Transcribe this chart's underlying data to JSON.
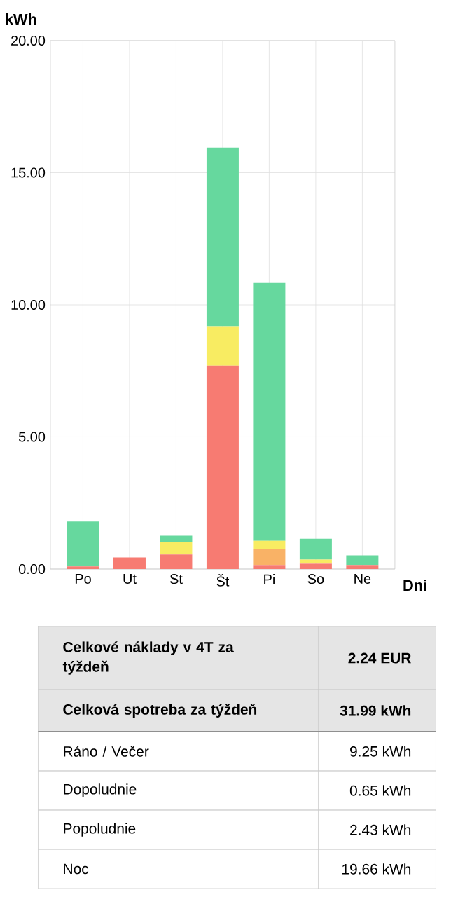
{
  "chart_data": {
    "type": "bar",
    "stacked": true,
    "xlabel": "Dni",
    "ylabel": "kWh",
    "categories": [
      "Po",
      "Ut",
      "St",
      "Št",
      "Pi",
      "So",
      "Ne"
    ],
    "series": [
      {
        "color": "#f77b72",
        "values": [
          0.1,
          0.44,
          0.55,
          7.7,
          0.15,
          0.2,
          0.15
        ]
      },
      {
        "color": "#f9b266",
        "values": [
          0,
          0,
          0,
          0,
          0.6,
          0.03,
          null
        ]
      },
      {
        "color": "#f8ec62",
        "values": [
          0,
          0,
          0.47,
          1.49,
          0.32,
          0.13,
          0
        ]
      },
      {
        "color": "#66d89e",
        "values": [
          1.7,
          0,
          0.24,
          6.76,
          9.76,
          0.79,
          0.37
        ]
      }
    ],
    "ylim": [
      0,
      20
    ],
    "yticks": [
      {
        "value": 0,
        "label": "0.00"
      },
      {
        "value": 5,
        "label": "5.00"
      },
      {
        "value": 10,
        "label": "10.00"
      },
      {
        "value": 15,
        "label": "15.00"
      },
      {
        "value": 20,
        "label": "20.00"
      }
    ],
    "grid": true,
    "annotations": [
      "Celkové náklady v 4T za týždeň",
      "2.24 EUR",
      "Celková spotreba za týždeň",
      "31.99 kWh",
      "Ráno / Večer",
      "9.25 kWh",
      "Dopoludnie",
      "0.65 kWh",
      "Popoludnie",
      "2.43 kWh",
      "Noc",
      "19.66 kWh"
    ]
  }
}
